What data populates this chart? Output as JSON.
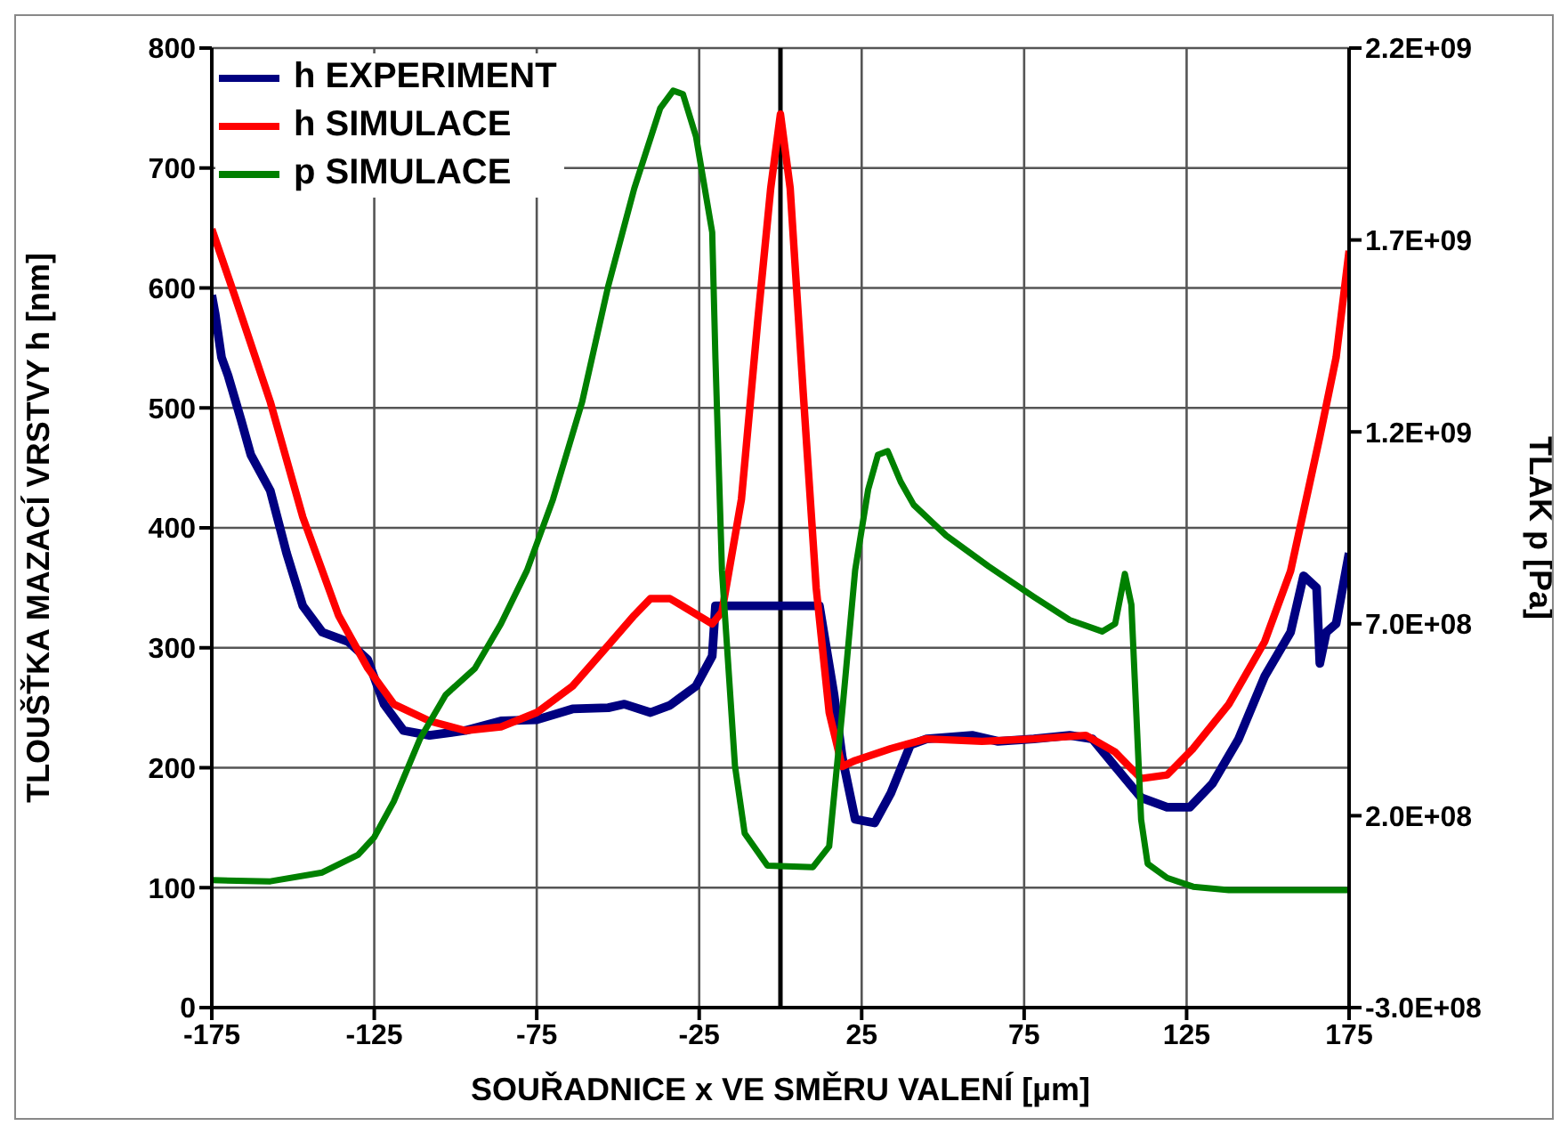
{
  "chart_data": {
    "type": "line",
    "xlabel": "SOUŘADNICE x VE SMĚRU VALENÍ [µm]",
    "ylabel": "TLOUŠŤKA MAZACÍ VRSTVY h [nm]",
    "y2label": "TLAK p [Pa]",
    "xlim": [
      -175,
      175
    ],
    "xticks": [
      -175,
      -125,
      -75,
      -25,
      25,
      75,
      125,
      175
    ],
    "ylim": [
      0,
      800
    ],
    "yticks": [
      0,
      100,
      200,
      300,
      400,
      500,
      600,
      700,
      800
    ],
    "y2lim": [
      -300000000,
      2200000000
    ],
    "y2ticks": [
      {
        "value": -300000000,
        "label": "-3.0E+08"
      },
      {
        "value": 200000000,
        "label": "2.0E+08"
      },
      {
        "value": 700000000,
        "label": "7.0E+08"
      },
      {
        "value": 1200000000,
        "label": "1.2E+09"
      },
      {
        "value": 1700000000,
        "label": "1.7E+09"
      },
      {
        "value": 2200000000,
        "label": "2.2E+09"
      }
    ],
    "grid": true,
    "legend": "top left",
    "line_style": "solid",
    "ref_lines": [
      {
        "axis": "x",
        "value": 0,
        "color": "#000000"
      }
    ],
    "series": [
      {
        "name": "h EXPERIMENT",
        "color": "#000080",
        "x": [
          -175,
          -174,
          -172,
          -170,
          -166,
          -163,
          -157,
          -152,
          -147,
          -141,
          -133,
          -127,
          -122,
          -116,
          -108,
          -97,
          -86,
          -75,
          -64,
          -53,
          -48,
          -40,
          -34,
          -26,
          -21,
          -20,
          0,
          12,
          16.5,
          19,
          23,
          29,
          34,
          40,
          45,
          59,
          67,
          78,
          89,
          96,
          103,
          111,
          119,
          126,
          133,
          141,
          149,
          157,
          161,
          165,
          166,
          168,
          171,
          175
        ],
        "values": [
          594,
          579,
          542,
          527,
          490,
          461,
          431,
          379,
          335,
          313,
          305,
          290,
          253,
          231,
          227,
          231,
          239,
          240,
          249,
          250,
          253,
          246,
          252,
          268,
          293,
          335,
          335,
          335,
          261,
          209,
          157,
          154,
          179,
          219,
          224,
          227,
          222,
          224,
          227,
          224,
          201,
          175,
          167,
          167,
          187,
          224,
          276,
          313,
          360,
          350,
          287,
          313,
          320,
          379
        ]
      },
      {
        "name": "h SIMULACE",
        "color": "#ff0000",
        "x": [
          -175,
          -168,
          -157,
          -147,
          -136,
          -127,
          -119,
          -108,
          -97,
          -86,
          -75,
          -64,
          -53,
          -45,
          -40,
          -34,
          -29,
          -21,
          -18,
          -12,
          -7,
          -3,
          0,
          3,
          7,
          11,
          15,
          19,
          23,
          34,
          45,
          62,
          78,
          94,
          103,
          111,
          119,
          127,
          138,
          149,
          157,
          166,
          171,
          175
        ],
        "values": [
          649,
          594,
          505,
          409,
          327,
          283,
          253,
          239,
          231,
          234,
          246,
          268,
          302,
          327,
          341,
          341,
          333,
          320,
          330,
          424,
          572,
          683,
          745,
          683,
          513,
          350,
          246,
          201,
          206,
          216,
          224,
          222,
          224,
          227,
          213,
          191,
          194,
          216,
          253,
          305,
          364,
          476,
          542,
          631
        ]
      },
      {
        "name": "p SIMULACE",
        "color": "#008000",
        "axis": "y2",
        "x": [
          -175,
          -157,
          -141,
          -130,
          -125,
          -119,
          -111,
          -103,
          -94,
          -86,
          -78,
          -70,
          -61,
          -53,
          -45,
          -37,
          -33,
          -30,
          -26,
          -21,
          -20,
          -18,
          -14,
          -11,
          -4,
          10,
          15,
          19,
          23,
          27,
          30,
          33,
          37,
          41,
          51,
          64,
          78,
          89,
          99,
          103,
          106,
          108,
          111,
          113,
          119,
          127,
          138,
          175
        ],
        "values": [
          32000000,
          29000000,
          52000000,
          98000000,
          144000000,
          237000000,
          399000000,
          515000000,
          584000000,
          700000000,
          839000000,
          1024000000,
          1279000000,
          1580000000,
          1834000000,
          2043000000,
          2089000000,
          2080000000,
          1970000000,
          1720000000,
          1390000000,
          840000000,
          330000000,
          154000000,
          70000000,
          66000000,
          120000000,
          470000000,
          840000000,
          1050000000,
          1140000000,
          1150000000,
          1070000000,
          1010000000,
          930000000,
          850000000,
          770000000,
          710000000,
          680000000,
          700000000,
          830000000,
          750000000,
          190000000,
          75000000,
          38000000,
          15000000,
          6000000,
          6000000
        ]
      }
    ]
  }
}
